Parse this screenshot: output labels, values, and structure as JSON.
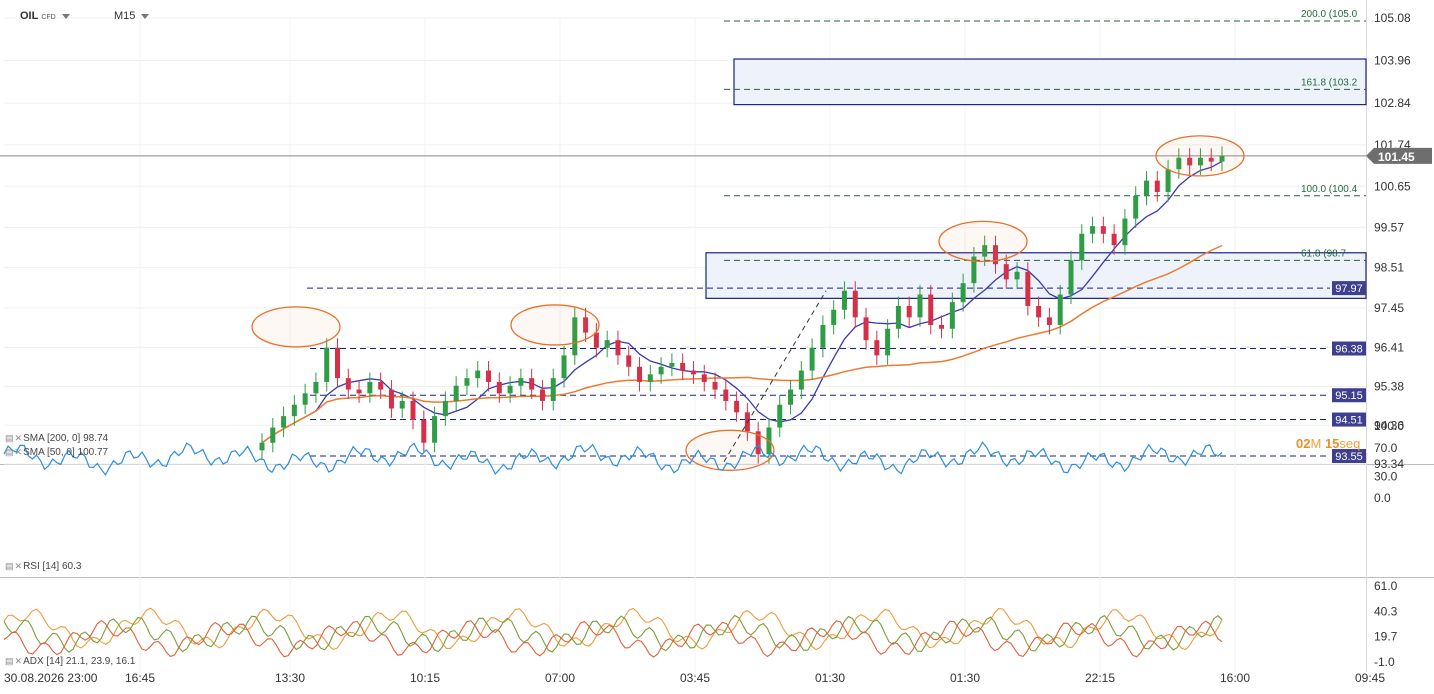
{
  "header": {
    "symbol": "OIL",
    "instrument_type": "CFD",
    "timeframe": "M15"
  },
  "colors": {
    "candle_up": "#2e9d45",
    "candle_down": "#d5304a",
    "sma50": "#3a3ab0",
    "sma200": "#ef7a2e",
    "rsi": "#2a8ee0",
    "adx": "#ef9b3a",
    "di_plus": "#7a9e3a",
    "di_minus": "#e0603a",
    "box": "#1a237e",
    "price_label": "#3f3f8f",
    "last_price": "#6e6e6e"
  },
  "price_axis": {
    "ticks": [
      "105.08",
      "103.96",
      "102.84",
      "101.74",
      "100.65",
      "99.57",
      "98.51",
      "97.45",
      "96.41",
      "95.38",
      "94.36",
      "93.34"
    ],
    "last_price": "101.45"
  },
  "levels": [
    {
      "value": 97.97,
      "label": "97.97"
    },
    {
      "value": 96.38,
      "label": "96.38"
    },
    {
      "value": 95.15,
      "label": "95.15"
    },
    {
      "value": 94.51,
      "label": "94.51"
    },
    {
      "value": 93.55,
      "label": "93.55"
    }
  ],
  "fibonacci": [
    {
      "value": 105.0,
      "label": "200.0 (105.0"
    },
    {
      "value": 103.2,
      "label": "161.8 (103.2"
    },
    {
      "value": 100.4,
      "label": "100.0 (100.4"
    },
    {
      "value": 98.7,
      "label": "61.8 (98.7"
    }
  ],
  "zones": [
    {
      "from": 102.8,
      "to": 104.0
    },
    {
      "from": 97.7,
      "to": 98.9
    }
  ],
  "indicators": {
    "sma200": "SMA [200, 0] 98.74",
    "sma50": "SMA [50, 0] 100.77",
    "rsi": "RSI [14] 60.3",
    "adx": "ADX [14] 21.1, 23.9, 16.1"
  },
  "countdown": {
    "minutes": "02",
    "m_unit": "M",
    "seconds": "15",
    "s_unit": "seq"
  },
  "rsi_axis": [
    "100.0",
    "70.0",
    "30.0",
    "0.0"
  ],
  "adx_axis": [
    "61.0",
    "40.3",
    "19.7",
    "-1.0"
  ],
  "time_axis": [
    "30.08.2026 23:00",
    "16:45",
    "13:30",
    "10:15",
    "07:00",
    "03:45",
    "01:30",
    "01:30",
    "22:15",
    "16:00",
    "09:45"
  ],
  "chart_data": {
    "type": "candlestick",
    "series": [
      {
        "name": "OIL",
        "close": [
          93.9,
          94.3,
          94.6,
          94.9,
          95.2,
          95.5,
          96.4,
          95.6,
          95.3,
          95.2,
          95.5,
          95.3,
          94.8,
          95.0,
          94.5,
          93.9,
          94.6,
          95.0,
          95.4,
          95.6,
          95.8,
          95.5,
          95.2,
          95.4,
          95.6,
          95.3,
          95.0,
          95.6,
          96.2,
          97.2,
          96.8,
          96.4,
          96.6,
          96.2,
          95.9,
          95.5,
          95.7,
          95.9,
          96.0,
          95.8,
          95.7,
          95.5,
          95.3,
          95.0,
          94.7,
          94.2,
          93.6,
          94.3,
          94.9,
          95.3,
          95.8,
          96.4,
          97.0,
          97.4,
          97.9,
          97.2,
          96.6,
          96.2,
          96.9,
          97.5,
          97.2,
          97.8,
          97.0,
          96.9,
          97.6,
          98.1,
          98.8,
          99.1,
          98.6,
          98.2,
          98.4,
          97.5,
          97.2,
          97.0,
          97.8,
          98.7,
          99.4,
          99.6,
          99.4,
          99.1,
          99.8,
          100.4,
          100.8,
          100.5,
          101.1,
          101.4,
          101.2,
          101.4,
          101.3,
          101.45
        ]
      }
    ],
    "indicators": [
      "SMA 200",
      "SMA 50",
      "RSI 14",
      "ADX 14"
    ],
    "grid": true
  }
}
